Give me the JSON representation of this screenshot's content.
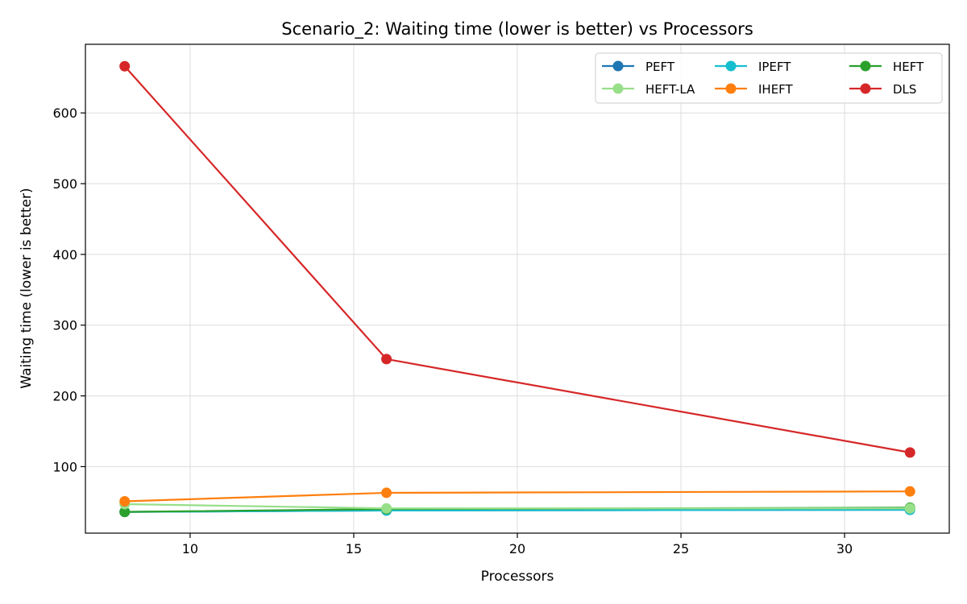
{
  "chart_data": {
    "type": "line",
    "title": "Scenario_2: Waiting time (lower is better) vs Processors",
    "xlabel": "Processors",
    "ylabel": "Waiting time (lower is better)",
    "x": [
      8,
      16,
      32
    ],
    "xlim": [
      6.8,
      33.2
    ],
    "ylim": [
      6,
      697
    ],
    "xticks": [
      10,
      15,
      20,
      25,
      30
    ],
    "yticks": [
      100,
      200,
      300,
      400,
      500,
      600
    ],
    "grid": true,
    "legend_position": "top-right",
    "series": [
      {
        "name": "PEFT",
        "color": "#1f77b4",
        "values": [
          36,
          38,
          39
        ]
      },
      {
        "name": "IPEFT",
        "color": "#17becf",
        "values": [
          36,
          38,
          39
        ]
      },
      {
        "name": "HEFT",
        "color": "#2ca02c",
        "values": [
          36,
          40,
          42
        ]
      },
      {
        "name": "HEFT-LA",
        "color": "#98df8a",
        "values": [
          47,
          41,
          41
        ]
      },
      {
        "name": "IHEFT",
        "color": "#ff7f0e",
        "values": [
          51,
          63,
          65
        ]
      },
      {
        "name": "DLS",
        "color": "#d62728",
        "values": [
          666,
          252,
          120
        ]
      }
    ]
  }
}
